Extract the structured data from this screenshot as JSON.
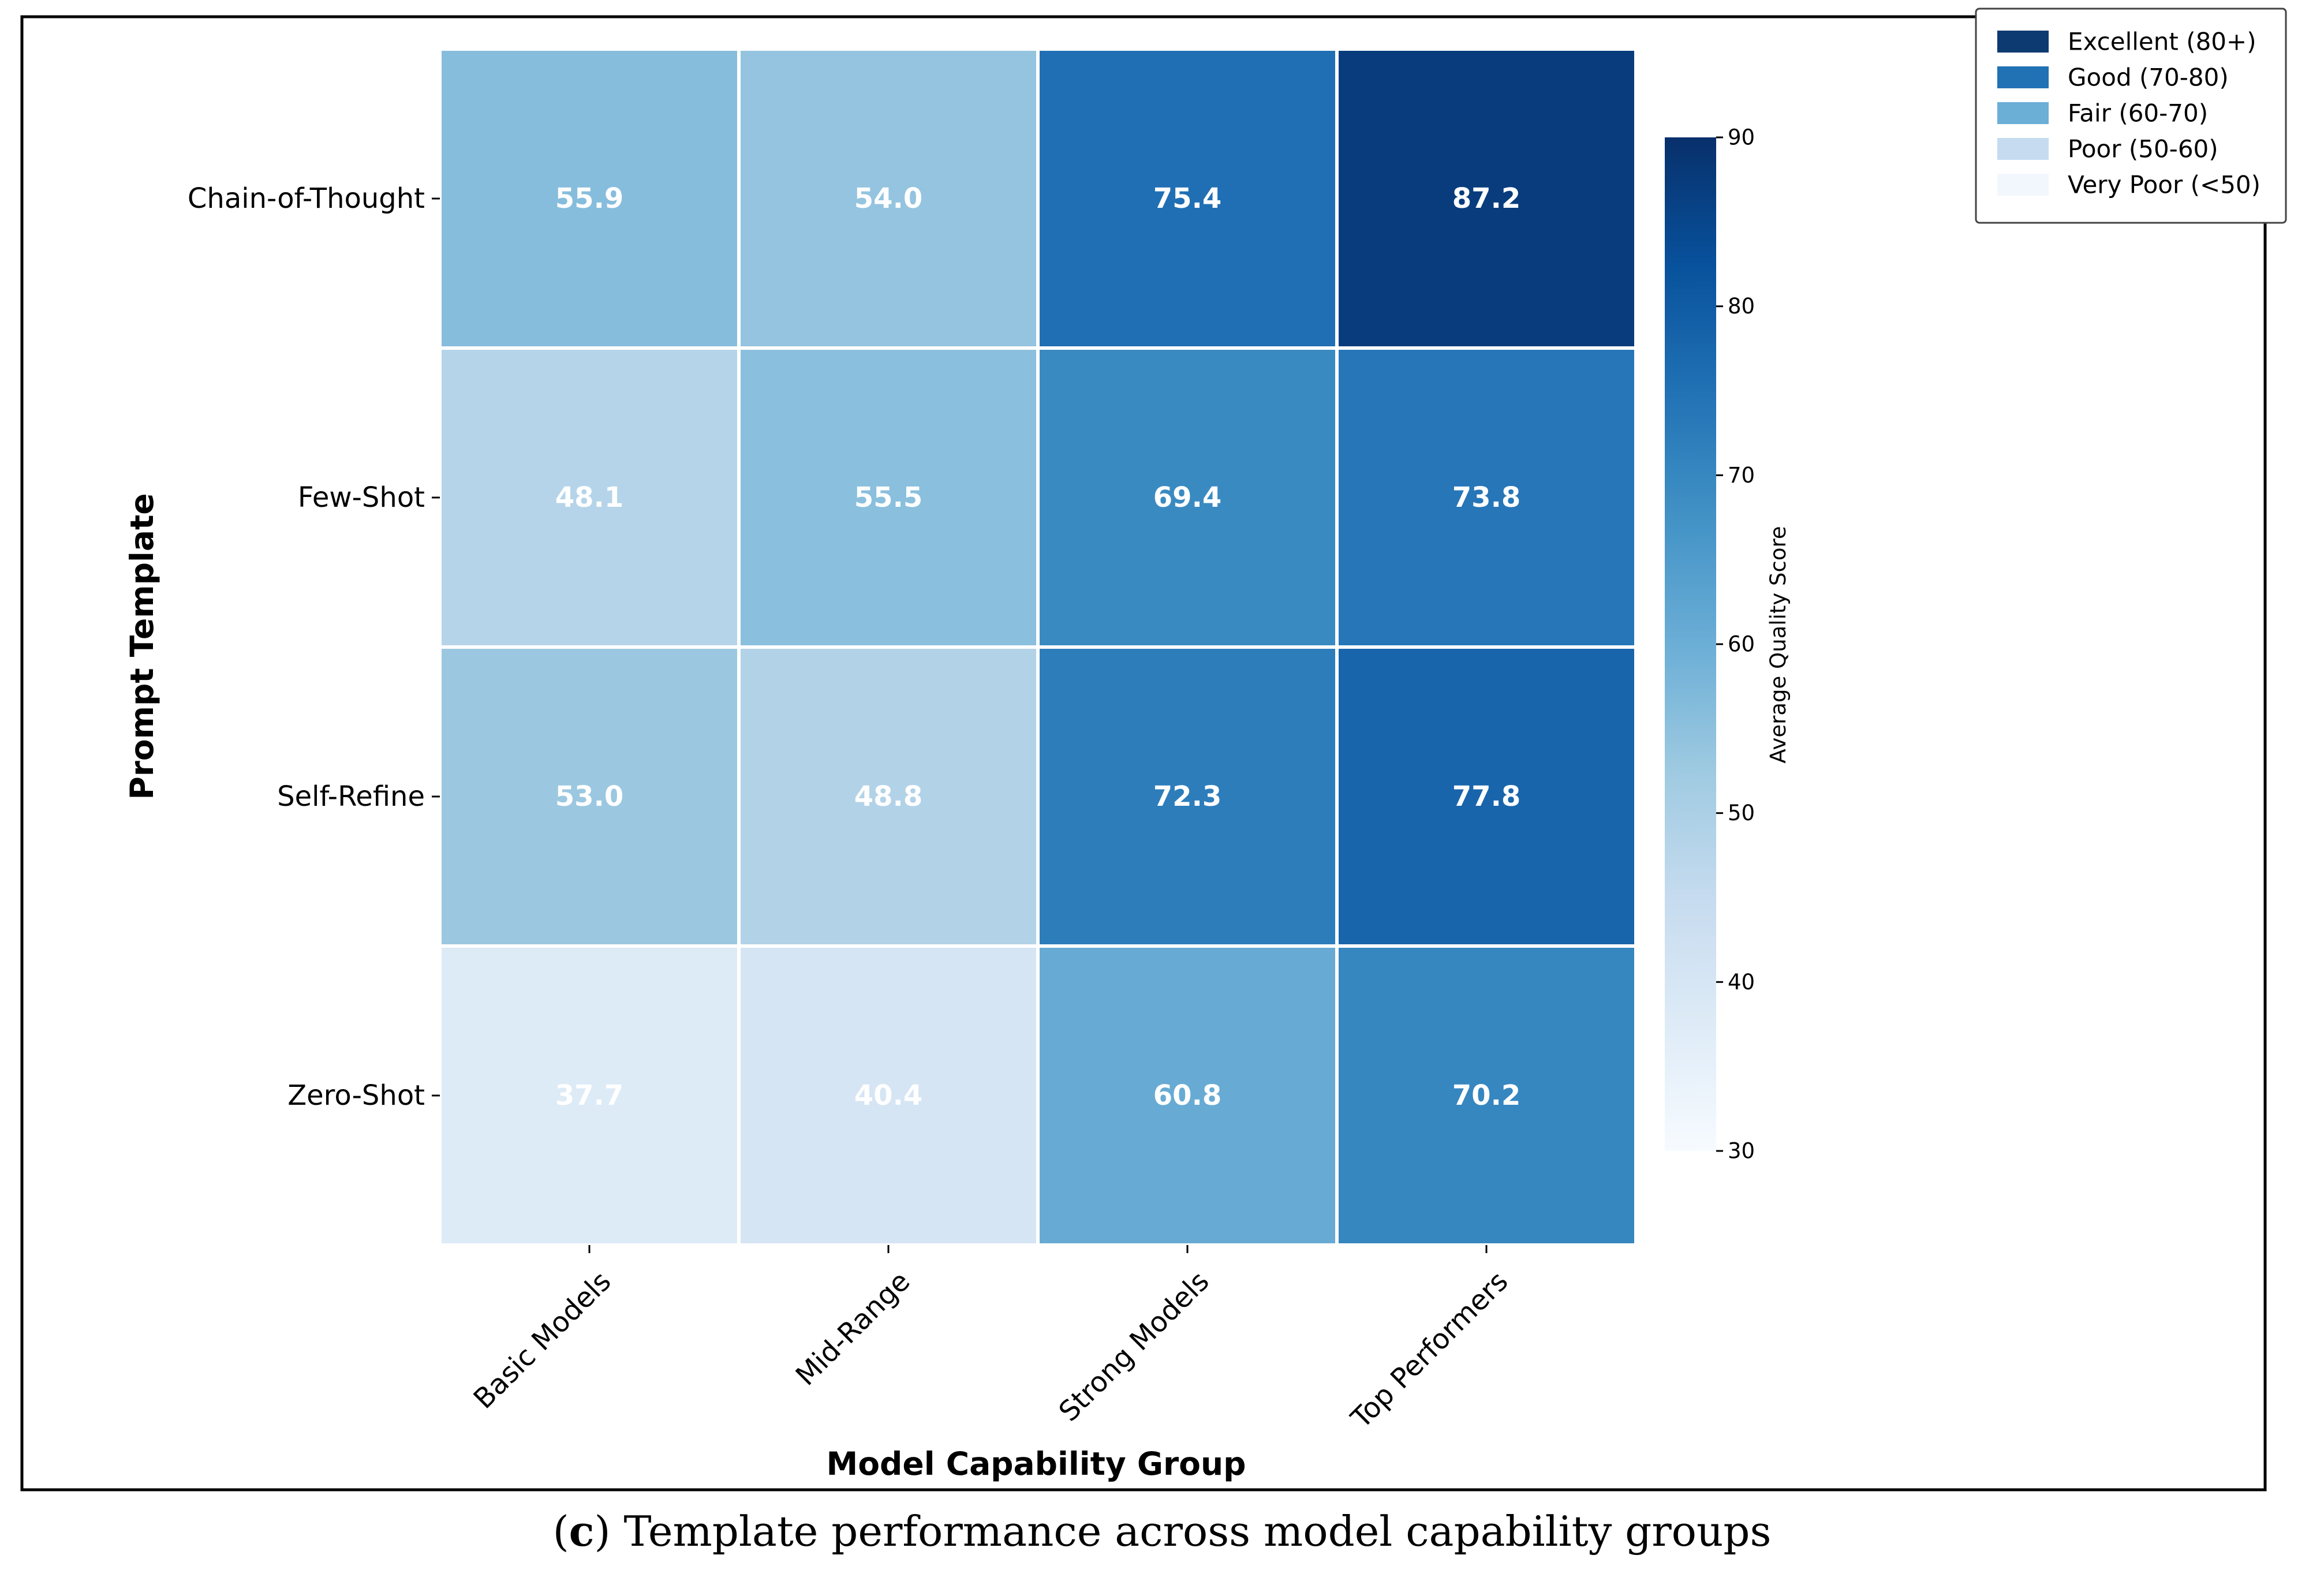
{
  "chart_data": {
    "type": "heatmap",
    "xlabel": "Model Capability Group",
    "ylabel": "Prompt Template",
    "x_categories": [
      "Basic Models",
      "Mid-Range",
      "Strong Models",
      "Top Performers"
    ],
    "y_categories": [
      "Chain-of-Thought",
      "Few-Shot",
      "Self-Refine",
      "Zero-Shot"
    ],
    "values": [
      [
        55.9,
        54.0,
        75.4,
        87.2
      ],
      [
        48.1,
        55.5,
        69.4,
        73.8
      ],
      [
        53.0,
        48.8,
        72.3,
        77.8
      ],
      [
        37.7,
        40.4,
        60.8,
        70.2
      ]
    ],
    "colorbar": {
      "label": "Average Quality Score",
      "range": [
        30,
        90
      ],
      "ticks": [
        30,
        40,
        50,
        60,
        70,
        80,
        90
      ],
      "colormap": "Blues"
    },
    "legend": {
      "position": "top-right",
      "items": [
        {
          "label": "Excellent (80+)",
          "color": "#0e3a72"
        },
        {
          "label": "Good (70-80)",
          "color": "#2171b5"
        },
        {
          "label": "Fair (60-70)",
          "color": "#6baed6"
        },
        {
          "label": "Poor (50-60)",
          "color": "#c6dbef"
        },
        {
          "label": "Very Poor (<50)",
          "color": "#f2f7fd"
        }
      ]
    }
  },
  "caption": {
    "prefix": "(",
    "letter": "c",
    "suffix": ") Template performance across model capability groups"
  }
}
